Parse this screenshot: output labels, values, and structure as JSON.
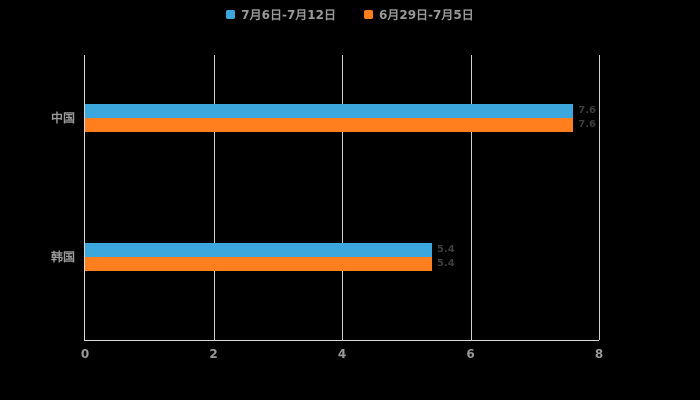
{
  "chart_data": {
    "type": "bar",
    "orientation": "horizontal",
    "title": "",
    "categories": [
      "中国",
      "韩国"
    ],
    "series": [
      {
        "name": "7月6日-7月12日",
        "color": "#3ba7dc",
        "values": [
          7.6,
          5.4
        ]
      },
      {
        "name": "6月29日-7月5日",
        "color": "#ff7f1e",
        "values": [
          7.6,
          5.4
        ]
      }
    ],
    "xlim": [
      0,
      8
    ],
    "x_ticks": [
      "0",
      "2",
      "4",
      "6",
      "8"
    ],
    "grid": true,
    "legend_position": "top",
    "background": "#000000",
    "text_color": "#999999"
  }
}
